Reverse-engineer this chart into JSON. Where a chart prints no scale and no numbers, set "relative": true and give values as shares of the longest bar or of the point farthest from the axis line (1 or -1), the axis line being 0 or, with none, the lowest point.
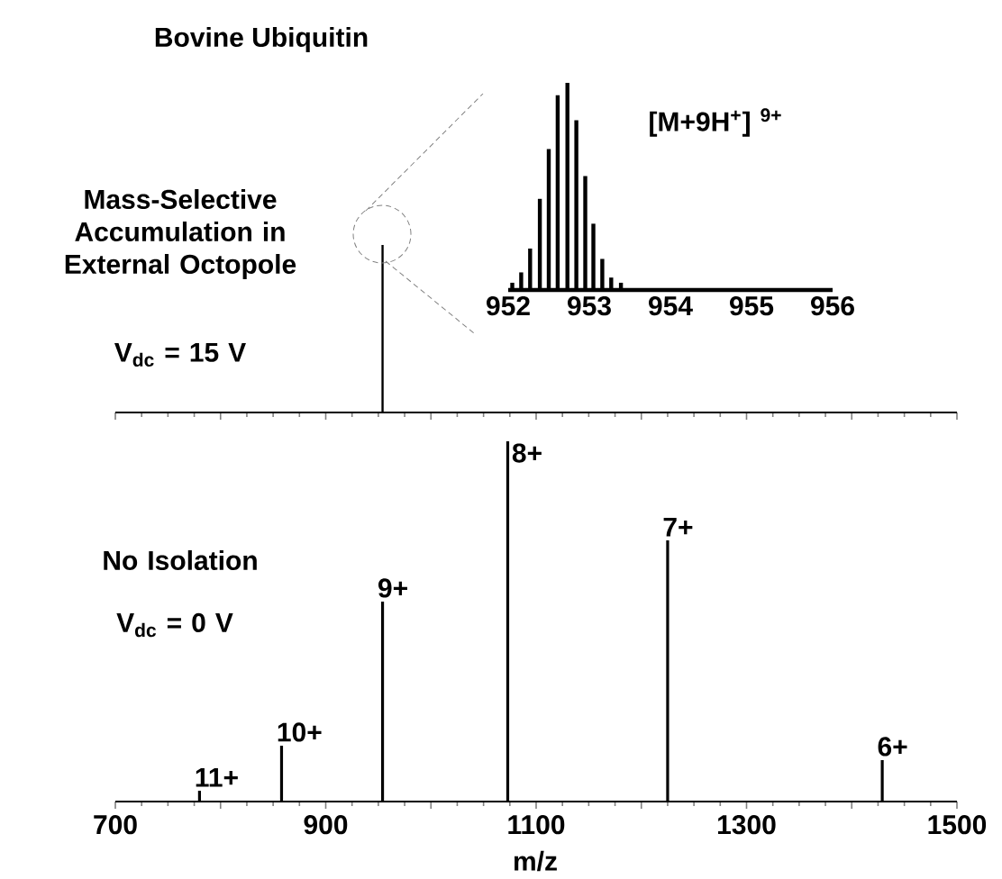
{
  "chart_data": [
    {
      "type": "bar",
      "title": "Bovine  Ubiquitin",
      "relative": true,
      "color": "#000000",
      "x": [
        954
      ],
      "values": [
        1.0
      ],
      "xlim": [
        700,
        1500
      ],
      "xticks": [
        700,
        800,
        900,
        1000,
        1100,
        1200,
        1300,
        1400,
        1500
      ],
      "tick_labels": false,
      "annotations": [
        "Mass-Selective Accumulation in External Octopole",
        "V$_{dc}$ = 15 V"
      ]
    },
    {
      "type": "bar",
      "relative": true,
      "color": "#000000",
      "x": [
        952.05,
        952.16,
        952.27,
        952.39,
        952.5,
        952.61,
        952.73,
        952.84,
        952.95,
        953.05,
        953.16,
        953.27,
        953.39
      ],
      "values": [
        0.035,
        0.085,
        0.2,
        0.44,
        0.68,
        0.94,
        1.0,
        0.82,
        0.55,
        0.32,
        0.15,
        0.06,
        0.035
      ],
      "xlim": [
        952,
        956
      ],
      "xticks": [
        952,
        953,
        954,
        955,
        956
      ],
      "annotations": [
        "[M+9H$^{+}$] $^{9+}$"
      ]
    },
    {
      "type": "bar",
      "relative": true,
      "color": "#000000",
      "xlabel": "m/z",
      "x": [
        780,
        858,
        954,
        1073,
        1225,
        1429
      ],
      "values": [
        0.03,
        0.155,
        0.555,
        1.0,
        0.725,
        0.115
      ],
      "xlim": [
        700,
        1500
      ],
      "xticks": [
        700,
        {
          "value": 800,
          "label": null
        },
        900,
        {
          "value": 1000,
          "label": null
        },
        1100,
        {
          "value": 1200,
          "label": null
        },
        1300,
        {
          "value": 1400,
          "label": null
        },
        1500
      ],
      "annotations": [
        "No Isolation",
        "V$_{dc}$ = 0 V",
        {
          "text": "11+",
          "x": 780,
          "y": 0.03
        },
        {
          "text": "10+",
          "x": 858,
          "y": 0.155
        },
        {
          "text": "9+",
          "x": 954,
          "y": 0.555
        },
        {
          "text": "8+",
          "x": 1073,
          "y": 1.0
        },
        {
          "text": "7+",
          "x": 1225,
          "y": 0.725
        },
        {
          "text": "6+",
          "x": 1429,
          "y": 0.115
        }
      ]
    }
  ]
}
